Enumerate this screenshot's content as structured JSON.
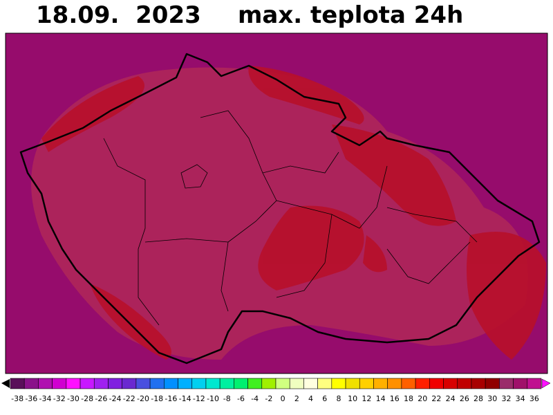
{
  "header": {
    "date": "18.09.  2023",
    "title": "max. teplota 24h"
  },
  "legend": {
    "ticks": [
      -38,
      -36,
      -34,
      -32,
      -30,
      -28,
      -26,
      -24,
      -22,
      -20,
      -18,
      -16,
      -14,
      -12,
      -10,
      -8,
      -6,
      -4,
      -2,
      0,
      2,
      4,
      6,
      8,
      10,
      12,
      14,
      16,
      18,
      20,
      22,
      24,
      26,
      28,
      30,
      32,
      34,
      36
    ],
    "colors": [
      "#5a0f5a",
      "#8a128a",
      "#b010b0",
      "#d000d0",
      "#ff10ff",
      "#c818ff",
      "#a020f0",
      "#8020e0",
      "#6a28d0",
      "#4a50e0",
      "#2070f0",
      "#0090ff",
      "#00b0ff",
      "#00d0f0",
      "#00e8d0",
      "#00f0a0",
      "#00f070",
      "#40f020",
      "#a0f000",
      "#d0ff80",
      "#f0ffc0",
      "#ffffe0",
      "#ffff80",
      "#ffff00",
      "#f0e000",
      "#ffd000",
      "#ffb000",
      "#ff9000",
      "#ff6000",
      "#ff2000",
      "#f00000",
      "#d80000",
      "#c00000",
      "#a80000",
      "#900000",
      "#9a2c6a",
      "#a0106a",
      "#c01090"
    ]
  }
}
